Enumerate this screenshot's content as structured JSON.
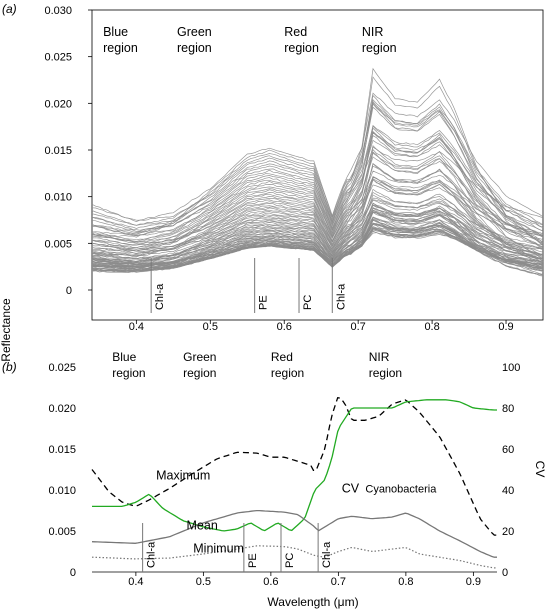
{
  "figure": {
    "y_label": "Reflectance",
    "x_label": "Wavelength (μm)"
  },
  "chart_data": [
    {
      "panel": "(a)",
      "type": "line",
      "xlim": [
        0.34,
        0.95
      ],
      "ylim": [
        0,
        0.03
      ],
      "x_ticks": [
        "0.4",
        "0.5",
        "0.6",
        "0.7",
        "0.8",
        "0.9"
      ],
      "y_ticks": [
        "0",
        "0.005",
        "0.010",
        "0.015",
        "0.020",
        "0.025",
        "0.030"
      ],
      "regions": [
        {
          "line1": "Blue",
          "line2": "region",
          "x": 0.355
        },
        {
          "line1": "Green",
          "line2": "region",
          "x": 0.455
        },
        {
          "line1": "Red",
          "line2": "region",
          "x": 0.6
        },
        {
          "line1": "NIR",
          "line2": "region",
          "x": 0.705
        }
      ],
      "pigment_markers": [
        {
          "label": "Chl-a",
          "x": 0.42
        },
        {
          "label": "PE",
          "x": 0.56
        },
        {
          "label": "PC",
          "x": 0.62
        },
        {
          "label": "Chl-a",
          "x": 0.665
        }
      ],
      "spectra_color": "#8c8c8c",
      "spectra_count": 80,
      "spectra_shape": {
        "x": [
          0.34,
          0.4,
          0.45,
          0.5,
          0.55,
          0.58,
          0.62,
          0.64,
          0.665,
          0.68,
          0.705,
          0.72,
          0.75,
          0.78,
          0.81,
          0.83,
          0.86,
          0.9,
          0.95
        ],
        "relative": [
          0.55,
          0.48,
          0.55,
          0.75,
          1.0,
          1.05,
          0.98,
          0.95,
          0.55,
          0.78,
          1.05,
          1.45,
          1.3,
          1.28,
          1.4,
          1.25,
          0.95,
          0.7,
          0.55
        ]
      },
      "spectra_peak_range": [
        0.0045,
        0.0145
      ]
    },
    {
      "panel": "(b)",
      "type": "line",
      "xlim": [
        0.335,
        0.935
      ],
      "ylim": [
        0,
        0.025
      ],
      "y2lim": [
        0,
        100
      ],
      "y2_label": "CV",
      "x_ticks": [
        "0.4",
        "0.5",
        "0.6",
        "0.7",
        "0.8",
        "0.9"
      ],
      "y_ticks": [
        "0",
        "0.005",
        "0.010",
        "0.015",
        "0.020",
        "0.025"
      ],
      "y2_ticks": [
        "0",
        "20",
        "40",
        "60",
        "80",
        "100"
      ],
      "regions": [
        {
          "line1": "Blue",
          "line2": "region",
          "x": 0.365
        },
        {
          "line1": "Green",
          "line2": "region",
          "x": 0.47
        },
        {
          "line1": "Red",
          "line2": "region",
          "x": 0.6
        },
        {
          "line1": "NIR",
          "line2": "region",
          "x": 0.745
        }
      ],
      "pigment_markers": [
        {
          "label": "Chl-a",
          "x": 0.41
        },
        {
          "label": "PE",
          "x": 0.56
        },
        {
          "label": "PC",
          "x": 0.615
        },
        {
          "label": "Chl-a",
          "x": 0.67
        }
      ],
      "series": [
        {
          "name": "Maximum",
          "color": "#000000",
          "style": "dashed",
          "axis": "left",
          "x": [
            0.335,
            0.36,
            0.38,
            0.4,
            0.42,
            0.45,
            0.48,
            0.5,
            0.52,
            0.55,
            0.58,
            0.6,
            0.62,
            0.64,
            0.66,
            0.665,
            0.68,
            0.69,
            0.7,
            0.71,
            0.72,
            0.74,
            0.76,
            0.78,
            0.8,
            0.82,
            0.85,
            0.88,
            0.91,
            0.93
          ],
          "y": [
            0.0125,
            0.0098,
            0.0085,
            0.008,
            0.0088,
            0.0102,
            0.0118,
            0.0128,
            0.0138,
            0.0146,
            0.0145,
            0.014,
            0.014,
            0.0135,
            0.013,
            0.012,
            0.015,
            0.019,
            0.0215,
            0.0205,
            0.0185,
            0.0185,
            0.019,
            0.0205,
            0.021,
            0.0195,
            0.0165,
            0.012,
            0.0065,
            0.0045
          ]
        },
        {
          "name": "CV",
          "color": "#22aa22",
          "style": "solid",
          "axis": "right",
          "x": [
            0.335,
            0.38,
            0.4,
            0.42,
            0.44,
            0.47,
            0.5,
            0.53,
            0.55,
            0.57,
            0.59,
            0.61,
            0.63,
            0.65,
            0.665,
            0.68,
            0.69,
            0.7,
            0.72,
            0.75,
            0.78,
            0.8,
            0.83,
            0.86,
            0.88,
            0.9,
            0.93
          ],
          "y": [
            32,
            32,
            34,
            38,
            31,
            25,
            22,
            20,
            21,
            24,
            20,
            24,
            20,
            26,
            40,
            45,
            55,
            70,
            80,
            80,
            80,
            83,
            84,
            84,
            83,
            80,
            79
          ]
        },
        {
          "name": "Mean",
          "color": "#777777",
          "style": "solid",
          "axis": "left",
          "x": [
            0.335,
            0.4,
            0.45,
            0.5,
            0.55,
            0.58,
            0.62,
            0.64,
            0.665,
            0.67,
            0.7,
            0.72,
            0.75,
            0.78,
            0.8,
            0.82,
            0.85,
            0.88,
            0.91,
            0.93
          ],
          "y": [
            0.0037,
            0.0035,
            0.0043,
            0.006,
            0.0072,
            0.0075,
            0.0073,
            0.007,
            0.0055,
            0.005,
            0.0065,
            0.0068,
            0.0065,
            0.0067,
            0.0072,
            0.0065,
            0.005,
            0.0038,
            0.0025,
            0.0018
          ]
        },
        {
          "name": "Minimum",
          "color": "#777777",
          "style": "dotted",
          "axis": "left",
          "x": [
            0.335,
            0.4,
            0.45,
            0.5,
            0.55,
            0.58,
            0.62,
            0.64,
            0.665,
            0.68,
            0.7,
            0.72,
            0.75,
            0.78,
            0.8,
            0.82,
            0.85,
            0.88,
            0.91,
            0.93
          ],
          "y": [
            0.0018,
            0.0016,
            0.0017,
            0.0022,
            0.0028,
            0.0032,
            0.0031,
            0.0028,
            0.002,
            0.0018,
            0.0025,
            0.003,
            0.0025,
            0.0028,
            0.003,
            0.0022,
            0.0018,
            0.0014,
            0.0008,
            0.0005
          ]
        }
      ],
      "annotations": [
        {
          "text": "Maximum",
          "x": 0.43,
          "y": 0.0113
        },
        {
          "text": "CV",
          "x": 0.705,
          "y": 0.0097
        },
        {
          "text": "Cyanobacteria",
          "x": 0.74,
          "y": 0.0097
        },
        {
          "text": "Mean",
          "x": 0.475,
          "y": 0.0052
        },
        {
          "text": "Minimum",
          "x": 0.485,
          "y": 0.0024
        }
      ]
    }
  ]
}
